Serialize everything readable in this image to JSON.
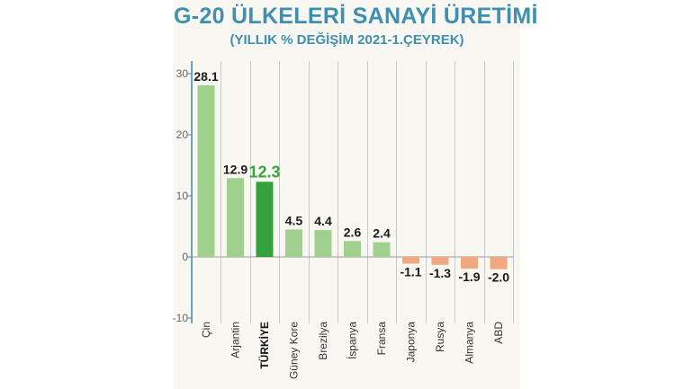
{
  "title": "G-20 ÜLKELERİ SANAYİ ÜRETİMİ",
  "subtitle": "(YILLIK % DEĞİŞİM 2021-1.ÇEYREK)",
  "colors": {
    "positive": "#9fd08d",
    "highlight": "#33a13c",
    "negative": "#f2a87e",
    "title": "#3f8fb0",
    "axis": "#3f8fb0",
    "grid": "#c8c8c8"
  },
  "chart_data": {
    "type": "bar",
    "title": "G-20 ÜLKELERİ SANAYİ ÜRETİMİ",
    "subtitle": "(YILLIK % DEĞİŞİM 2021-1.ÇEYREK)",
    "categories": [
      "Çin",
      "Arjantin",
      "TÜRKİYE",
      "Güney Kore",
      "Brezilya",
      "İspanya",
      "Fransa",
      "Japonya",
      "Rusya",
      "Almanya",
      "ABD"
    ],
    "values": [
      28.1,
      12.9,
      12.3,
      4.5,
      4.4,
      2.6,
      2.4,
      -1.1,
      -1.3,
      -1.9,
      -2.0
    ],
    "value_labels": [
      "28.1",
      "12.9",
      "12.3",
      "4.5",
      "4.4",
      "2.6",
      "2.4",
      "-1.1",
      "-1.3",
      "-1.9",
      "-2.0"
    ],
    "highlight": "TÜRKİYE",
    "ylim": [
      -10,
      30
    ],
    "yticks": [
      30,
      20,
      10,
      0,
      -10
    ],
    "ytick_labels": [
      "30",
      "20",
      "10",
      "0",
      "-10"
    ],
    "xlabel": "",
    "ylabel": "",
    "grid": "vertical",
    "legend": "none"
  }
}
